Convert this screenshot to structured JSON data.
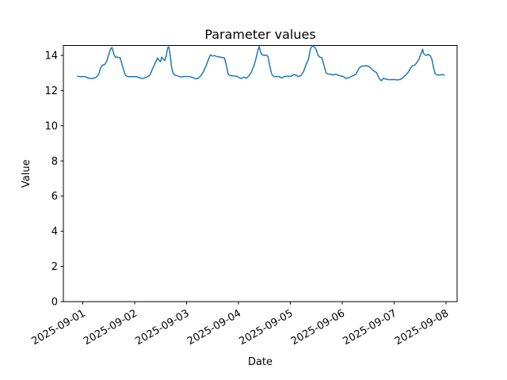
{
  "figure": {
    "background": "#ffffff"
  },
  "chart_data": {
    "type": "line",
    "title": "Parameter values",
    "xlabel": "Date",
    "ylabel": "Value",
    "grid": false,
    "legend": null,
    "line_color": "#1f77b4",
    "line_width": 1.5,
    "axis_color": "#000000",
    "x_unit": "days since 2025-09-01 00:00",
    "xlim_days": [
      -0.374,
      7.214
    ],
    "ylim": [
      0,
      14.56
    ],
    "x_tick_days": [
      0,
      1,
      2,
      3,
      4,
      5,
      6,
      7
    ],
    "x_tick_labels": [
      "2025-09-01",
      "2025-09-02",
      "2025-09-03",
      "2025-09-04",
      "2025-09-05",
      "2025-09-06",
      "2025-09-07",
      "2025-09-08"
    ],
    "x_tick_rotation_deg": -30,
    "y_ticks": [
      0,
      2,
      4,
      6,
      8,
      10,
      12,
      14
    ],
    "series": [
      {
        "points": [
          [
            -0.1,
            12.82
          ],
          [
            -0.06,
            12.79
          ],
          [
            0.0,
            12.79
          ],
          [
            0.06,
            12.78
          ],
          [
            0.11,
            12.7
          ],
          [
            0.17,
            12.68
          ],
          [
            0.22,
            12.7
          ],
          [
            0.27,
            12.78
          ],
          [
            0.31,
            12.95
          ],
          [
            0.34,
            13.27
          ],
          [
            0.38,
            13.44
          ],
          [
            0.42,
            13.47
          ],
          [
            0.46,
            13.65
          ],
          [
            0.5,
            14.05
          ],
          [
            0.53,
            14.32
          ],
          [
            0.56,
            14.45
          ],
          [
            0.58,
            14.28
          ],
          [
            0.6,
            14.05
          ],
          [
            0.63,
            13.88
          ],
          [
            0.66,
            13.91
          ],
          [
            0.69,
            13.88
          ],
          [
            0.72,
            13.86
          ],
          [
            0.75,
            13.55
          ],
          [
            0.79,
            13.15
          ],
          [
            0.82,
            12.88
          ],
          [
            0.86,
            12.8
          ],
          [
            0.9,
            12.78
          ],
          [
            0.95,
            12.8
          ],
          [
            1.0,
            12.79
          ],
          [
            1.05,
            12.78
          ],
          [
            1.1,
            12.72
          ],
          [
            1.15,
            12.68
          ],
          [
            1.2,
            12.73
          ],
          [
            1.25,
            12.79
          ],
          [
            1.3,
            12.9
          ],
          [
            1.34,
            13.22
          ],
          [
            1.38,
            13.46
          ],
          [
            1.41,
            13.65
          ],
          [
            1.44,
            13.85
          ],
          [
            1.47,
            13.72
          ],
          [
            1.5,
            13.64
          ],
          [
            1.52,
            13.9
          ],
          [
            1.55,
            13.8
          ],
          [
            1.58,
            13.7
          ],
          [
            1.61,
            14.0
          ],
          [
            1.64,
            14.45
          ],
          [
            1.66,
            14.48
          ],
          [
            1.69,
            13.9
          ],
          [
            1.71,
            13.35
          ],
          [
            1.74,
            13.0
          ],
          [
            1.77,
            12.88
          ],
          [
            1.82,
            12.84
          ],
          [
            1.86,
            12.8
          ],
          [
            1.9,
            12.77
          ],
          [
            1.95,
            12.8
          ],
          [
            2.0,
            12.8
          ],
          [
            2.06,
            12.79
          ],
          [
            2.12,
            12.74
          ],
          [
            2.18,
            12.66
          ],
          [
            2.23,
            12.72
          ],
          [
            2.28,
            12.85
          ],
          [
            2.33,
            13.1
          ],
          [
            2.38,
            13.45
          ],
          [
            2.42,
            13.75
          ],
          [
            2.46,
            14.03
          ],
          [
            2.5,
            13.96
          ],
          [
            2.54,
            13.99
          ],
          [
            2.58,
            13.93
          ],
          [
            2.63,
            13.92
          ],
          [
            2.68,
            13.88
          ],
          [
            2.73,
            13.86
          ],
          [
            2.77,
            13.4
          ],
          [
            2.8,
            12.95
          ],
          [
            2.84,
            12.85
          ],
          [
            2.89,
            12.84
          ],
          [
            2.93,
            12.82
          ],
          [
            2.97,
            12.82
          ],
          [
            3.02,
            12.72
          ],
          [
            3.06,
            12.68
          ],
          [
            3.1,
            12.77
          ],
          [
            3.15,
            12.7
          ],
          [
            3.2,
            12.83
          ],
          [
            3.25,
            13.05
          ],
          [
            3.3,
            13.42
          ],
          [
            3.34,
            13.85
          ],
          [
            3.38,
            14.35
          ],
          [
            3.4,
            14.5
          ],
          [
            3.43,
            14.15
          ],
          [
            3.46,
            14.03
          ],
          [
            3.5,
            14.0
          ],
          [
            3.54,
            14.02
          ],
          [
            3.57,
            13.93
          ],
          [
            3.6,
            13.45
          ],
          [
            3.64,
            12.95
          ],
          [
            3.68,
            12.8
          ],
          [
            3.73,
            12.8
          ],
          [
            3.78,
            12.79
          ],
          [
            3.83,
            12.72
          ],
          [
            3.88,
            12.79
          ],
          [
            3.93,
            12.81
          ],
          [
            3.97,
            12.82
          ],
          [
            4.02,
            12.82
          ],
          [
            4.06,
            12.9
          ],
          [
            4.1,
            12.89
          ],
          [
            4.15,
            12.8
          ],
          [
            4.2,
            12.84
          ],
          [
            4.25,
            13.05
          ],
          [
            4.3,
            13.45
          ],
          [
            4.35,
            13.78
          ],
          [
            4.39,
            14.4
          ],
          [
            4.43,
            14.55
          ],
          [
            4.47,
            14.45
          ],
          [
            4.5,
            14.32
          ],
          [
            4.53,
            14.02
          ],
          [
            4.57,
            13.9
          ],
          [
            4.61,
            13.87
          ],
          [
            4.65,
            13.4
          ],
          [
            4.69,
            13.0
          ],
          [
            4.73,
            12.94
          ],
          [
            4.78,
            12.92
          ],
          [
            4.83,
            12.89
          ],
          [
            4.88,
            12.93
          ],
          [
            4.93,
            12.86
          ],
          [
            4.97,
            12.83
          ],
          [
            5.02,
            12.8
          ],
          [
            5.07,
            12.69
          ],
          [
            5.12,
            12.72
          ],
          [
            5.17,
            12.8
          ],
          [
            5.22,
            12.86
          ],
          [
            5.27,
            12.95
          ],
          [
            5.32,
            13.25
          ],
          [
            5.36,
            13.37
          ],
          [
            5.41,
            13.4
          ],
          [
            5.46,
            13.41
          ],
          [
            5.51,
            13.38
          ],
          [
            5.56,
            13.25
          ],
          [
            5.61,
            13.12
          ],
          [
            5.66,
            13.02
          ],
          [
            5.71,
            12.7
          ],
          [
            5.75,
            12.56
          ],
          [
            5.8,
            12.7
          ],
          [
            5.84,
            12.65
          ],
          [
            5.89,
            12.62
          ],
          [
            5.94,
            12.62
          ],
          [
            6.0,
            12.63
          ],
          [
            6.06,
            12.6
          ],
          [
            6.12,
            12.63
          ],
          [
            6.17,
            12.73
          ],
          [
            6.22,
            12.87
          ],
          [
            6.27,
            13.03
          ],
          [
            6.32,
            13.28
          ],
          [
            6.36,
            13.42
          ],
          [
            6.4,
            13.45
          ],
          [
            6.44,
            13.6
          ],
          [
            6.48,
            13.8
          ],
          [
            6.52,
            14.1
          ],
          [
            6.55,
            14.35
          ],
          [
            6.57,
            14.1
          ],
          [
            6.6,
            14.02
          ],
          [
            6.63,
            14.0
          ],
          [
            6.66,
            14.06
          ],
          [
            6.7,
            13.97
          ],
          [
            6.73,
            13.75
          ],
          [
            6.76,
            13.3
          ],
          [
            6.79,
            12.96
          ],
          [
            6.83,
            12.89
          ],
          [
            6.88,
            12.88
          ],
          [
            6.93,
            12.91
          ],
          [
            6.97,
            12.88
          ]
        ]
      }
    ]
  }
}
